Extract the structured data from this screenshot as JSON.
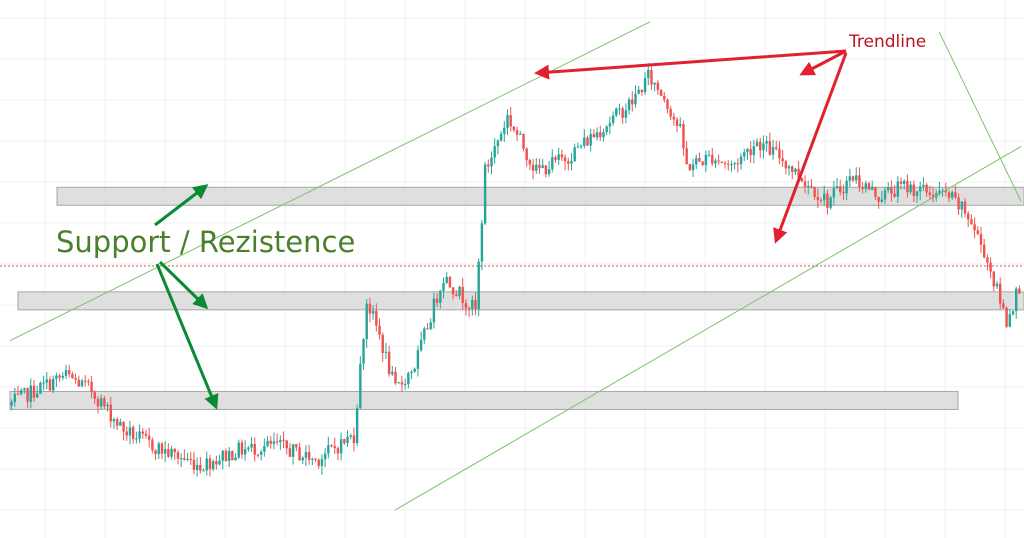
{
  "chart_data": {
    "type": "candlestick",
    "title": "",
    "xlabel": "",
    "ylabel": "",
    "axes_visible": false,
    "grid": true,
    "ylim": [
      0,
      100
    ],
    "x_count": 210,
    "colors": {
      "up": "#26a69a",
      "down": "#ef5350",
      "channel": "#7ac46a",
      "zone_fill": "#d9d9d9",
      "zone_border": "#a6a6a6",
      "green_arrow": "#0a8a34",
      "red_arrow": "#e0222e",
      "support_text": "#4a7f2b",
      "trendline_text": "#b8141e",
      "price_line": "#d9534f",
      "grid": "#f0f0f0"
    },
    "price_line": 49,
    "price_anchors": [
      [
        0,
        21
      ],
      [
        8,
        24
      ],
      [
        18,
        27
      ],
      [
        26,
        24
      ],
      [
        36,
        16
      ],
      [
        48,
        12
      ],
      [
        60,
        9
      ],
      [
        72,
        12
      ],
      [
        84,
        13
      ],
      [
        96,
        10
      ],
      [
        108,
        15
      ],
      [
        112,
        42
      ],
      [
        116,
        35
      ],
      [
        121,
        24
      ],
      [
        127,
        29
      ],
      [
        136,
        47
      ],
      [
        146,
        40
      ],
      [
        149,
        68
      ],
      [
        156,
        79
      ],
      [
        165,
        68
      ],
      [
        175,
        71
      ],
      [
        186,
        77
      ],
      [
        195,
        82
      ],
      [
        200,
        87
      ],
      [
        205,
        83
      ],
      [
        210,
        76
      ],
      [
        212,
        69
      ],
      [
        220,
        71
      ],
      [
        226,
        69
      ],
      [
        234,
        74
      ],
      [
        241,
        71
      ],
      [
        249,
        66
      ],
      [
        256,
        62
      ],
      [
        264,
        67
      ],
      [
        272,
        63
      ],
      [
        280,
        65
      ],
      [
        286,
        64
      ],
      [
        294,
        63
      ],
      [
        300,
        59
      ],
      [
        305,
        52
      ],
      [
        312,
        38
      ],
      [
        316,
        45
      ]
    ],
    "annotations": [
      {
        "text": "Support / Rezistence",
        "kind": "label"
      },
      {
        "text": "Trendline",
        "kind": "label"
      }
    ],
    "horizontal_zones": [
      {
        "name": "upper-zone",
        "level": 63
      },
      {
        "name": "middle-zone",
        "level": 42
      },
      {
        "name": "lower-zone",
        "level": 22
      }
    ],
    "channel_lines": [
      {
        "name": "channel-upper",
        "from": [
          0,
          34
        ],
        "to": [
          200,
          98
        ]
      },
      {
        "name": "channel-lower",
        "from": [
          80,
          0
        ],
        "to": [
          316,
          73
        ]
      },
      {
        "name": "descending-trendline",
        "from": [
          193,
          96
        ],
        "to": [
          316,
          62
        ]
      }
    ]
  }
}
